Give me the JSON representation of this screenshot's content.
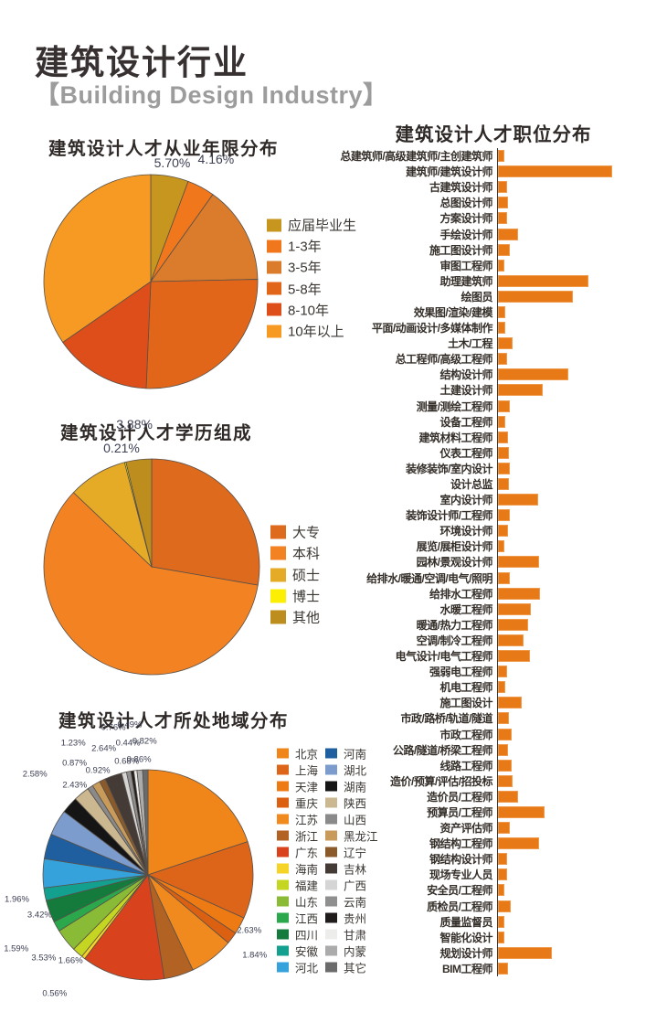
{
  "header": {
    "title_zh": "建筑设计行业",
    "title_en": "【Building Design Industry】"
  },
  "colors": {
    "bar_fill": "#e87917",
    "bar_border": "#ef9a4d",
    "axis": "#3a3a3a",
    "label_text": "#3d4054",
    "title_text": "#2f2a28",
    "subtitle_gray": "#9c9c9c"
  },
  "chart_data": [
    {
      "id": "experience",
      "type": "pie",
      "title": "建筑设计人才从业年限分布",
      "legend_position": "right",
      "slices": [
        {
          "label": "应届毕业生",
          "value": 5.7,
          "color": "#c6961e"
        },
        {
          "label": "1-3年",
          "value": 4.16,
          "color": "#f1771d"
        },
        {
          "label": "3-5年",
          "value": 14.81,
          "color": "#da7c2b"
        },
        {
          "label": "5-8年",
          "value": 26.02,
          "color": "#e2661a"
        },
        {
          "label": "8-10年",
          "value": 14.71,
          "color": "#dd4e1b"
        },
        {
          "label": "10年以上",
          "value": 34.61,
          "color": "#f79a23"
        }
      ]
    },
    {
      "id": "education",
      "type": "pie",
      "title": "建筑设计人才学历组成",
      "legend_position": "right",
      "slices": [
        {
          "label": "大专",
          "value": 28.0,
          "color": "#de6a1d"
        },
        {
          "label": "本科",
          "value": 59.96,
          "color": "#f28222"
        },
        {
          "label": "硕士",
          "value": 8.95,
          "color": "#e5aa26"
        },
        {
          "label": "博士",
          "value": 0.21,
          "color": "#fcef04"
        },
        {
          "label": "其他",
          "value": 3.88,
          "color": "#bd8d1e"
        }
      ]
    },
    {
      "id": "region",
      "type": "pie",
      "title": "建筑设计人才所处地域分布",
      "legend_position": "right-two-columns",
      "slices": [
        {
          "label": "北京",
          "value": 19.87,
          "color": "#f08519"
        },
        {
          "label": "上海",
          "value": 11.84,
          "color": "#dd651a"
        },
        {
          "label": "天津",
          "value": 2.63,
          "color": "#ee7a14"
        },
        {
          "label": "重庆",
          "value": 1.84,
          "color": "#dc6012"
        },
        {
          "label": "江苏",
          "value": 6.79,
          "color": "#f08a1e"
        },
        {
          "label": "浙江",
          "value": 4.54,
          "color": "#b26223"
        },
        {
          "label": "广东",
          "value": 12.78,
          "color": "#d8421c"
        },
        {
          "label": "海南",
          "value": 0.56,
          "color": "#f5d327"
        },
        {
          "label": "福建",
          "value": 1.66,
          "color": "#c5d622"
        },
        {
          "label": "山东",
          "value": 3.53,
          "color": "#8abb36"
        },
        {
          "label": "江西",
          "value": 1.59,
          "color": "#2ba84b"
        },
        {
          "label": "四川",
          "value": 3.42,
          "color": "#147b3d"
        },
        {
          "label": "安徽",
          "value": 1.96,
          "color": "#14a08e"
        },
        {
          "label": "河北",
          "value": 4.44,
          "color": "#36a2dc"
        },
        {
          "label": "河南",
          "value": 3.86,
          "color": "#1f5fa0"
        },
        {
          "label": "湖北",
          "value": 3.95,
          "color": "#7d9cce"
        },
        {
          "label": "湖南",
          "value": 2.58,
          "color": "#151515"
        },
        {
          "label": "陕西",
          "value": 2.43,
          "color": "#cbb891"
        },
        {
          "label": "山西",
          "value": 0.87,
          "color": "#8a8a8a"
        },
        {
          "label": "黑龙江",
          "value": 1.23,
          "color": "#c89b5a"
        },
        {
          "label": "辽宁",
          "value": 0.92,
          "color": "#8b5a2b"
        },
        {
          "label": "吉林",
          "value": 2.64,
          "color": "#453b36"
        },
        {
          "label": "广西",
          "value": 0.76,
          "color": "#d5d5d5"
        },
        {
          "label": "云南",
          "value": 0.68,
          "color": "#8f8f8f"
        },
        {
          "label": "贵州",
          "value": 0.44,
          "color": "#211c1c"
        },
        {
          "label": "甘肃",
          "value": 0.49,
          "color": "#ededeb"
        },
        {
          "label": "内蒙",
          "value": 0.86,
          "color": "#ababab"
        },
        {
          "label": "其它",
          "value": 0.82,
          "color": "#6b6b6b"
        }
      ]
    },
    {
      "id": "positions",
      "type": "bar",
      "title": "建筑设计人才职位分布",
      "orientation": "horizontal",
      "value_note": "relative bar lengths (no numeric axis shown in source)",
      "categories": [
        "总建筑师/高级建筑师/主创建筑师",
        "建筑师/建筑设计师",
        "古建筑设计师",
        "总图设计师",
        "方案设计师",
        "手绘设计师",
        "施工图设计师",
        "审图工程师",
        "助理建筑师",
        "绘图员",
        "效果图/渲染/建模",
        "平面/动画设计/多媒体制作",
        "土木/工程",
        "总工程师/高级工程师",
        "结构设计师",
        "土建设计师",
        "测量/测绘工程师",
        "设备工程师",
        "建筑材料工程师",
        "仪表工程师",
        "装修装饰/室内设计",
        "设计总监",
        "室内设计师",
        "装饰设计师/工程师",
        "环境设计师",
        "展览/展柜设计师",
        "园林/景观设计师",
        "给排水/暖通/空调/电气/照明",
        "给排水工程师",
        "水暖工程师",
        "暖通/热力工程师",
        "空调/制冷工程师",
        "电气设计/电气工程师",
        "强弱电工程师",
        "机电工程师",
        "施工图设计",
        "市政/路桥/轨道/隧道",
        "市政工程师",
        "公路/隧道/桥梁工程师",
        "线路工程师",
        "造价/预算/评估/招投标",
        "造价员/工程师",
        "预算员/工程师",
        "资产评估师",
        "钢结构工程师",
        "钢结构设计师",
        "现场专业人员",
        "安全员/工程师",
        "质检员/工程师",
        "质量监督员",
        "智能化设计",
        "规划设计师",
        "BIM工程师"
      ],
      "values": [
        7,
        125,
        10,
        11,
        10,
        22,
        13,
        7,
        99,
        82,
        8,
        8,
        16,
        10,
        77,
        49,
        13,
        8,
        11,
        12,
        13,
        12,
        44,
        13,
        11,
        7,
        45,
        13,
        46,
        36,
        33,
        28,
        35,
        10,
        8,
        26,
        12,
        15,
        11,
        15,
        16,
        22,
        51,
        13,
        45,
        10,
        10,
        7,
        14,
        7,
        7,
        59,
        11
      ]
    }
  ]
}
